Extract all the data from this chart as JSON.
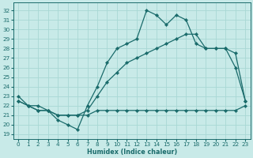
{
  "xlabel": "Humidex (Indice chaleur)",
  "bg_color": "#c8eae8",
  "line_color": "#1a6b6b",
  "grid_color": "#a8d8d4",
  "xlim": [
    -0.5,
    23.5
  ],
  "ylim": [
    18.5,
    32.8
  ],
  "hours": [
    0,
    1,
    2,
    3,
    4,
    5,
    6,
    7,
    8,
    9,
    10,
    11,
    12,
    13,
    14,
    15,
    16,
    17,
    18,
    19,
    20,
    21,
    22,
    23
  ],
  "line_top": [
    23.0,
    22.0,
    22.0,
    21.5,
    20.5,
    20.0,
    19.5,
    22.0,
    24.0,
    26.5,
    28.0,
    28.5,
    29.0,
    32.0,
    31.5,
    30.5,
    31.5,
    31.0,
    28.5,
    28.0,
    28.0,
    28.0,
    26.0,
    22.5
  ],
  "line_mid": [
    22.5,
    22.0,
    21.5,
    21.5,
    21.0,
    21.0,
    21.0,
    21.5,
    23.0,
    24.5,
    25.5,
    26.5,
    27.0,
    27.5,
    28.0,
    28.5,
    29.0,
    29.5,
    29.5,
    28.0,
    28.0,
    28.0,
    27.5,
    22.5
  ],
  "line_bot": [
    22.5,
    22.0,
    21.5,
    21.5,
    21.0,
    21.0,
    21.0,
    21.0,
    21.5,
    21.5,
    21.5,
    21.5,
    21.5,
    21.5,
    21.5,
    21.5,
    21.5,
    21.5,
    21.5,
    21.5,
    21.5,
    21.5,
    21.5,
    22.0
  ],
  "yticks": [
    19,
    20,
    21,
    22,
    23,
    24,
    25,
    26,
    27,
    28,
    29,
    30,
    31,
    32
  ]
}
